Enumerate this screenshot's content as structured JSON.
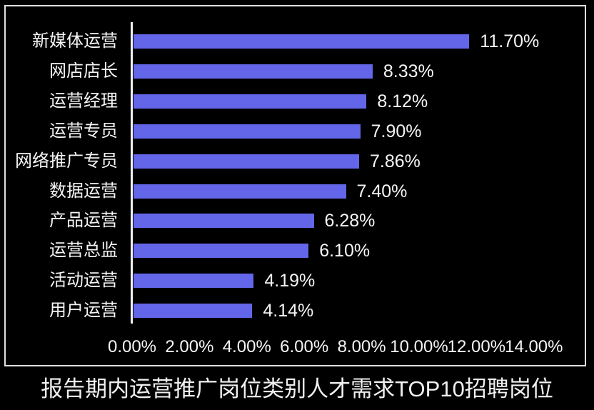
{
  "chart_data": {
    "type": "bar",
    "orientation": "horizontal",
    "title": "报告期内运营推广岗位类别人才需求TOP10招聘岗位",
    "categories": [
      "新媒体运营",
      "网店店长",
      "运营经理",
      "运营专员",
      "网络推广专员",
      "数据运营",
      "产品运营",
      "运营总监",
      "活动运营",
      "用户运营"
    ],
    "values": [
      11.7,
      8.33,
      8.12,
      7.9,
      7.86,
      7.4,
      6.28,
      6.1,
      4.19,
      4.14
    ],
    "value_labels": [
      "11.70%",
      "8.33%",
      "8.12%",
      "7.90%",
      "7.86%",
      "7.40%",
      "6.28%",
      "6.10%",
      "4.19%",
      "4.14%"
    ],
    "x_axis": {
      "tick_labels": [
        "0.00%",
        "2.00%",
        "4.00%",
        "6.00%",
        "8.00%",
        "10.00%",
        "12.00%",
        "14.00%"
      ],
      "tick_values": [
        0,
        2,
        4,
        6,
        8,
        10,
        12,
        14
      ],
      "min": 0,
      "max": 14
    },
    "ylabel": "",
    "xlabel": "",
    "legend": "none",
    "grid": false,
    "colors": {
      "bar": "#6366e8",
      "background": "#000000",
      "text": "#f5f5f5",
      "axis_line": "#f0f0f0",
      "frame_border": "#e0e0e0"
    }
  }
}
